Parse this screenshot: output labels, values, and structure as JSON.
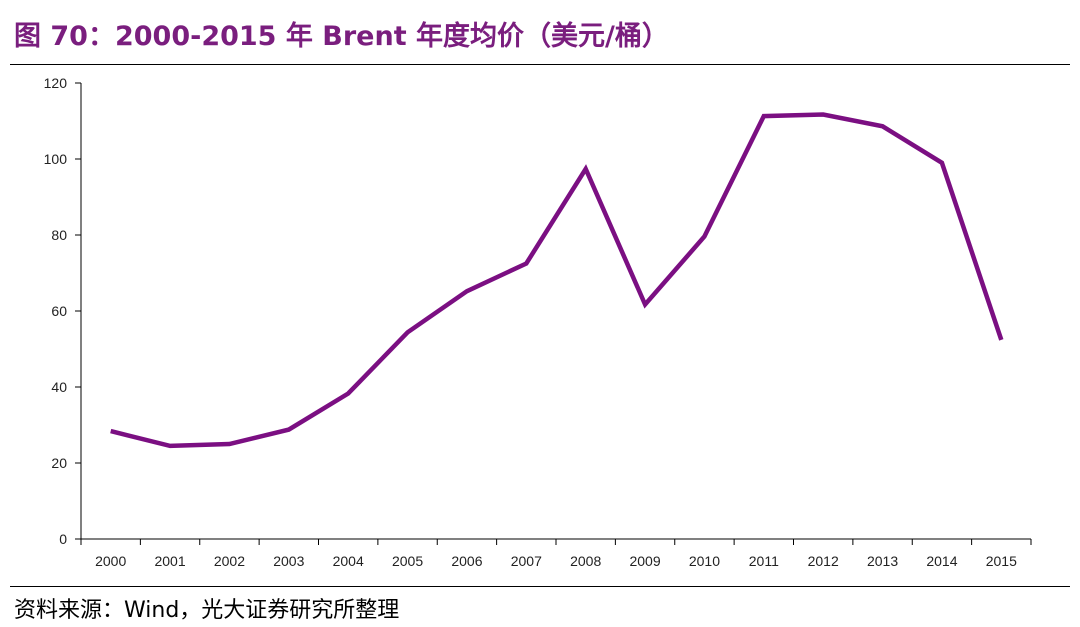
{
  "title": "图 70：2000-2015 年 Brent 年度均价（美元/桶）",
  "source": "资料来源：Wind，光大证券研究所整理",
  "colors": {
    "title": "#7a1e7e",
    "line": "#7b0f82",
    "axis": "#000000"
  },
  "chart_data": {
    "type": "line",
    "title": "图 70：2000-2015 年 Brent 年度均价（美元/桶）",
    "xlabel": "",
    "ylabel": "",
    "categories": [
      "2000",
      "2001",
      "2002",
      "2003",
      "2004",
      "2005",
      "2006",
      "2007",
      "2008",
      "2009",
      "2010",
      "2011",
      "2012",
      "2013",
      "2014",
      "2015"
    ],
    "series": [
      {
        "name": "",
        "values": [
          28.4,
          24.5,
          25.0,
          28.8,
          38.3,
          54.4,
          65.2,
          72.5,
          97.4,
          61.7,
          79.6,
          111.3,
          111.7,
          108.6,
          99.0,
          52.4
        ]
      }
    ],
    "ylim": [
      0,
      120
    ],
    "yticks": [
      0,
      20,
      40,
      60,
      80,
      100,
      120
    ],
    "grid": false,
    "legend": "none"
  }
}
